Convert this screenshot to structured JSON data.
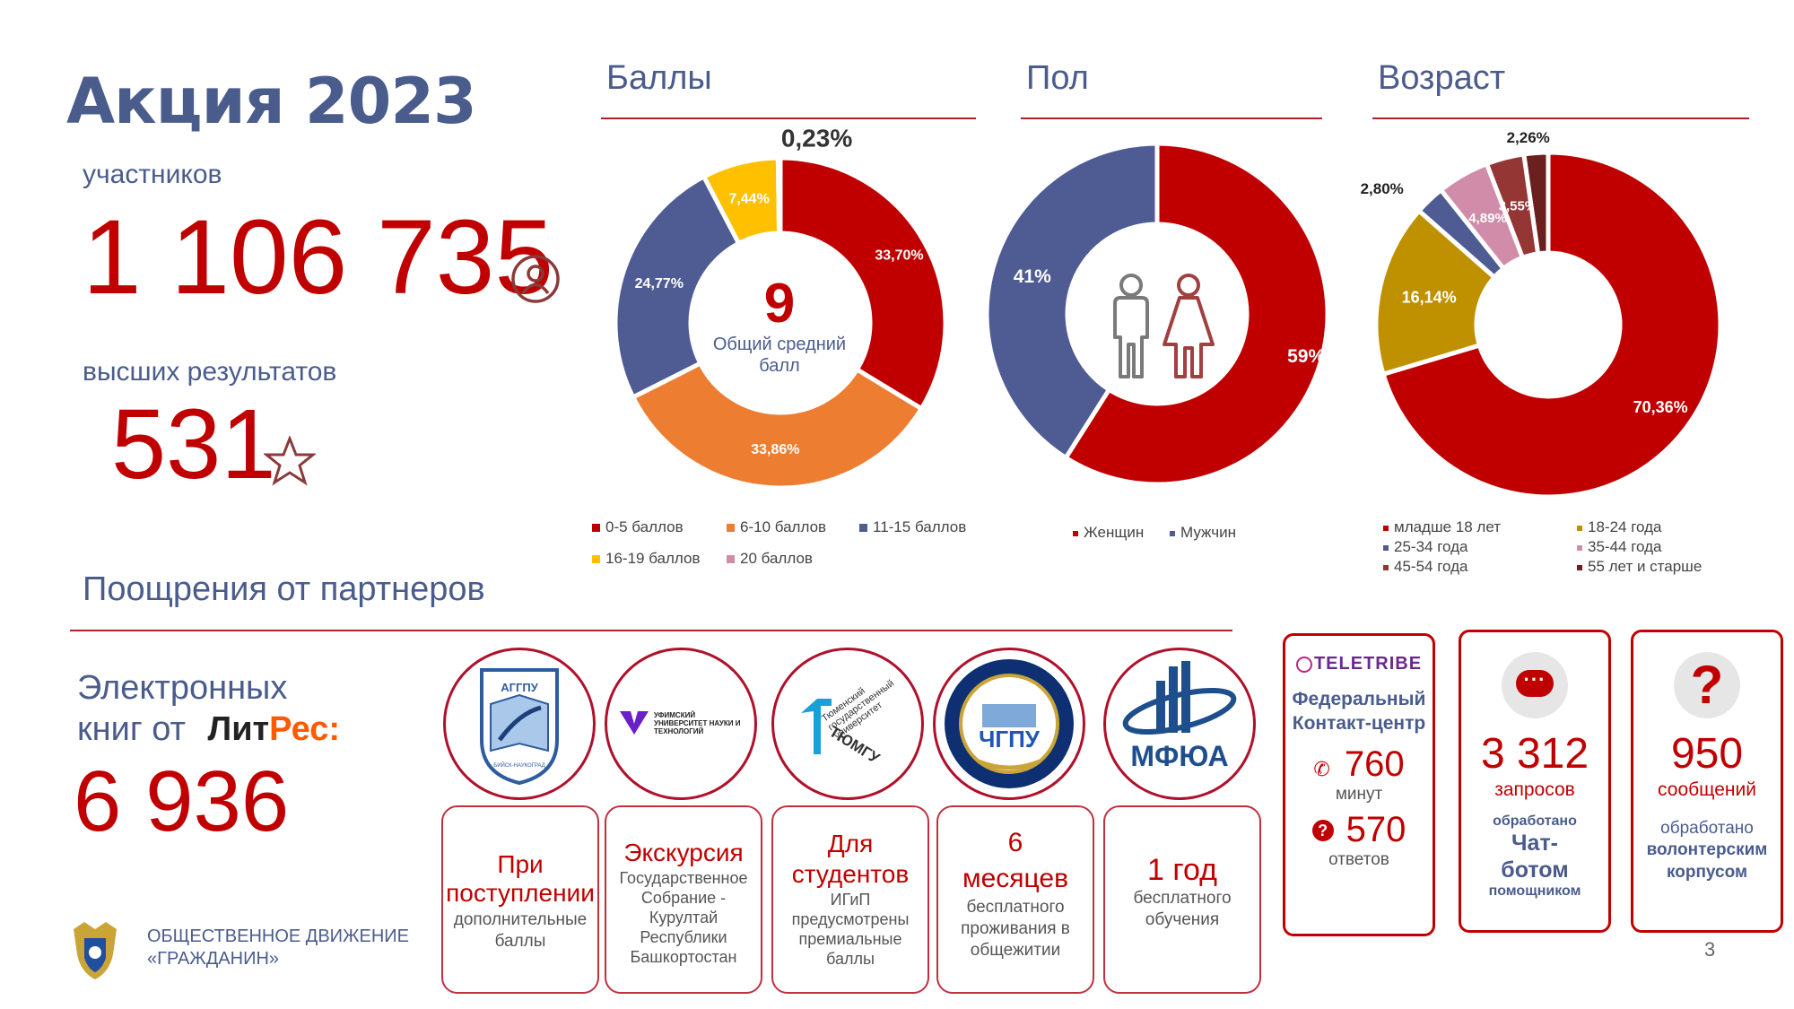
{
  "header": {
    "title": "Акция 2023",
    "participants_label": "участников",
    "participants_value": "1 106 735",
    "top_results_label": "высших результатов",
    "top_results_value": "531"
  },
  "partners": {
    "section_title": "Поощрения от партнеров",
    "ebooks_label_line1": "Электронных",
    "ebooks_label_line2": "книг от",
    "litres_brand_part1": "Лит",
    "litres_brand_part2": "Рес:",
    "ebooks_value": "6 936",
    "logos": [
      {
        "name": "АГГПУ",
        "caption_top": "АГГПУ",
        "caption_bottom": "БИЙСК-НАУКОГРАД"
      },
      {
        "name": "УУНиТ",
        "text": "УФИМСКИЙ УНИВЕРСИТЕТ НАУКИ И ТЕХНОЛОГИЙ"
      },
      {
        "name": "ТюмГУ",
        "text": "Тюменский государственный университет",
        "brand": "ТЮМГУ"
      },
      {
        "name": "ЧГПУ",
        "brand": "ЧГПУ"
      },
      {
        "name": "МФЮА",
        "brand": "МФЮА"
      }
    ],
    "cards": [
      {
        "title": "При поступлении",
        "sub": "дополнительные баллы"
      },
      {
        "title": "Экскурсия",
        "sub": "Государственное Собрание - Курултай Республики Башкортостан"
      },
      {
        "title": "Для студентов",
        "sub": "ИГиП предусмотрены премиальные баллы"
      },
      {
        "title": "6 месяцев",
        "sub": "бесплатного проживания в общежитии"
      },
      {
        "title": "1 год",
        "sub": "бесплатного обучения"
      }
    ]
  },
  "support": {
    "teletribe": {
      "brand": "TELETRIBE",
      "title": "Федеральный Контакт-центр",
      "minutes_value": "760",
      "minutes_label": "минут",
      "answers_value": "570",
      "answers_label": "ответов"
    },
    "chatbot": {
      "value": "3 312",
      "label": "запросов",
      "sub1": "обработано",
      "sub2": "Чат-ботом",
      "sub3": "помощником"
    },
    "volunteers": {
      "value": "950",
      "label": "сообщений",
      "sub1": "обработано",
      "sub2": "волонтерским корпусом"
    }
  },
  "footer": {
    "org_line1": "ОБЩЕСТВЕННОЕ ДВИЖЕНИЕ",
    "org_line2": "«ГРАЖДАНИН»",
    "page_number": "3"
  },
  "colors": {
    "red": "#c00000",
    "navy": "#4f5b93",
    "orange": "#ed7d31",
    "yellow": "#ffc000",
    "pink": "#d08ca8",
    "gold": "#bf9000",
    "brown": "#943634",
    "darkred": "#6b1f1f",
    "title_blue": "#4a5c8c"
  },
  "chart_data": [
    {
      "type": "pie",
      "title": "Баллы",
      "center_value": "9",
      "center_label": "Общий средний балл",
      "slices": [
        {
          "label": "0-5 баллов",
          "value": 33.7,
          "display": "33,70%",
          "color": "#c00000"
        },
        {
          "label": "6-10 баллов",
          "value": 33.86,
          "display": "33,86%",
          "color": "#ed7d31"
        },
        {
          "label": "11-15 баллов",
          "value": 24.77,
          "display": "24,77%",
          "color": "#4f5b93"
        },
        {
          "label": "16-19 баллов",
          "value": 7.44,
          "display": "7,44%",
          "color": "#ffc000"
        },
        {
          "label": "20 баллов",
          "value": 0.23,
          "display": "0,23%",
          "color": "#d08ca8"
        }
      ]
    },
    {
      "type": "pie",
      "title": "Пол",
      "slices": [
        {
          "label": "Женщин",
          "value": 59,
          "display": "59%",
          "color": "#c00000"
        },
        {
          "label": "Мужчин",
          "value": 41,
          "display": "41%",
          "color": "#4f5b93"
        }
      ]
    },
    {
      "type": "pie",
      "title": "Возраст",
      "slices": [
        {
          "label": "младше 18 лет",
          "value": 70.36,
          "display": "70,36%",
          "color": "#c00000"
        },
        {
          "label": "18-24 года",
          "value": 16.14,
          "display": "16,14%",
          "color": "#bf9000"
        },
        {
          "label": "25-34 года",
          "value": 2.8,
          "display": "2,80%",
          "color": "#4f5b93"
        },
        {
          "label": "35-44 года",
          "value": 4.89,
          "display": "4,89%",
          "color": "#d08ca8"
        },
        {
          "label": "45-54 года",
          "value": 3.55,
          "display": "3,55%",
          "color": "#943634"
        },
        {
          "label": "55 лет и старше",
          "value": 2.26,
          "display": "2,26%",
          "color": "#6b1f1f"
        }
      ]
    }
  ]
}
